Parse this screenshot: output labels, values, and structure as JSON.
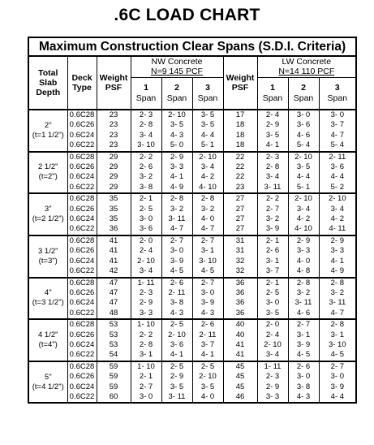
{
  "title": ".6C LOAD CHART",
  "caption": "Maximum Construction Clear Spans (S.D.I. Criteria)",
  "headers": {
    "total_slab_depth": "Total Slab Depth",
    "deck_type": "Deck Type",
    "weight_psf": "Weight PSF",
    "nw_title": "NW Concrete",
    "nw_sub": "N=9  145 PCF",
    "lw_title": "LW Concrete",
    "lw_sub": "N=14  110 PCF",
    "span_word": "Span",
    "span_numbers": [
      "1",
      "2",
      "3"
    ]
  },
  "groups": [
    {
      "depth": "2\"",
      "depth_sub": "(t=1 1/2\")",
      "rows": [
        {
          "deck": "0.6C28",
          "nw_weight": "23",
          "nw": [
            "2- 3",
            "2- 10",
            "3- 5"
          ],
          "lw_weight": "17",
          "lw": [
            "2- 4",
            "3- 0",
            "3- 0"
          ]
        },
        {
          "deck": "0.6C26",
          "nw_weight": "23",
          "nw": [
            "2- 8",
            "3- 5",
            "3- 5"
          ],
          "lw_weight": "18",
          "lw": [
            "2- 9",
            "3- 6",
            "3- 7"
          ]
        },
        {
          "deck": "0.6C24",
          "nw_weight": "23",
          "nw": [
            "3- 4",
            "4- 3",
            "4- 4"
          ],
          "lw_weight": "18",
          "lw": [
            "3- 5",
            "4- 6",
            "4- 7"
          ]
        },
        {
          "deck": "0.6C22",
          "nw_weight": "23",
          "nw": [
            "3- 10",
            "5- 0",
            "5- 1"
          ],
          "lw_weight": "18",
          "lw": [
            "4- 1",
            "5- 4",
            "5- 4"
          ]
        }
      ]
    },
    {
      "depth": "2 1/2\"",
      "depth_sub": "(t=2\")",
      "rows": [
        {
          "deck": "0.6C28",
          "nw_weight": "29",
          "nw": [
            "2- 2",
            "2- 9",
            "2- 10"
          ],
          "lw_weight": "22",
          "lw": [
            "2- 3",
            "2- 10",
            "2- 11"
          ]
        },
        {
          "deck": "0.6C26",
          "nw_weight": "29",
          "nw": [
            "2- 6",
            "3- 3",
            "3- 4"
          ],
          "lw_weight": "22",
          "lw": [
            "2- 8",
            "3- 5",
            "3- 6"
          ]
        },
        {
          "deck": "0.6C24",
          "nw_weight": "29",
          "nw": [
            "3- 2",
            "4- 1",
            "4- 2"
          ],
          "lw_weight": "22",
          "lw": [
            "3- 4",
            "4- 4",
            "4- 4"
          ]
        },
        {
          "deck": "0.6C22",
          "nw_weight": "29",
          "nw": [
            "3- 8",
            "4- 9",
            "4- 10"
          ],
          "lw_weight": "23",
          "lw": [
            "3- 11",
            "5- 1",
            "5- 2"
          ]
        }
      ]
    },
    {
      "depth": "3\"",
      "depth_sub": "(t=2 1/2\")",
      "rows": [
        {
          "deck": "0.6C28",
          "nw_weight": "35",
          "nw": [
            "2- 1",
            "2- 8",
            "2- 8"
          ],
          "lw_weight": "27",
          "lw": [
            "2- 2",
            "2- 10",
            "2- 10"
          ]
        },
        {
          "deck": "0.6C26",
          "nw_weight": "35",
          "nw": [
            "2- 5",
            "3- 2",
            "3- 2"
          ],
          "lw_weight": "27",
          "lw": [
            "2- 7",
            "3- 4",
            "3- 4"
          ]
        },
        {
          "deck": "0.6C24",
          "nw_weight": "35",
          "nw": [
            "3- 0",
            "3- 11",
            "4- 0"
          ],
          "lw_weight": "27",
          "lw": [
            "3- 2",
            "4- 2",
            "4- 2"
          ]
        },
        {
          "deck": "0.6C22",
          "nw_weight": "36",
          "nw": [
            "3- 6",
            "4- 7",
            "4- 7"
          ],
          "lw_weight": "27",
          "lw": [
            "3- 9",
            "4- 10",
            "4- 11"
          ]
        }
      ]
    },
    {
      "depth": "3 1/2\"",
      "depth_sub": "(t=3\")",
      "rows": [
        {
          "deck": "0.6C28",
          "nw_weight": "41",
          "nw": [
            "2- 0",
            "2- 7",
            "2- 7"
          ],
          "lw_weight": "31",
          "lw": [
            "2- 1",
            "2- 9",
            "2- 9"
          ]
        },
        {
          "deck": "0.6C26",
          "nw_weight": "41",
          "nw": [
            "2- 4",
            "3- 0",
            "3- 1"
          ],
          "lw_weight": "31",
          "lw": [
            "2- 6",
            "3- 3",
            "3- 3"
          ]
        },
        {
          "deck": "0.6C24",
          "nw_weight": "41",
          "nw": [
            "2- 10",
            "3- 9",
            "3- 10"
          ],
          "lw_weight": "32",
          "lw": [
            "3- 1",
            "4- 0",
            "4- 1"
          ]
        },
        {
          "deck": "0.6C22",
          "nw_weight": "42",
          "nw": [
            "3- 4",
            "4- 5",
            "4- 5"
          ],
          "lw_weight": "32",
          "lw": [
            "3- 7",
            "4- 8",
            "4- 9"
          ]
        }
      ]
    },
    {
      "depth": "4\"",
      "depth_sub": "(t=3 1/2\")",
      "rows": [
        {
          "deck": "0.6C28",
          "nw_weight": "47",
          "nw": [
            "1- 11",
            "2- 6",
            "2- 7"
          ],
          "lw_weight": "36",
          "lw": [
            "2- 1",
            "2- 8",
            "2- 8"
          ]
        },
        {
          "deck": "0.6C26",
          "nw_weight": "47",
          "nw": [
            "2- 3",
            "2- 11",
            "3- 0"
          ],
          "lw_weight": "36",
          "lw": [
            "2- 5",
            "3- 2",
            "3- 2"
          ]
        },
        {
          "deck": "0.6C24",
          "nw_weight": "47",
          "nw": [
            "2- 9",
            "3- 8",
            "3- 9"
          ],
          "lw_weight": "36",
          "lw": [
            "3- 0",
            "3- 11",
            "3- 11"
          ]
        },
        {
          "deck": "0.6C22",
          "nw_weight": "48",
          "nw": [
            "3- 3",
            "4- 3",
            "4- 3"
          ],
          "lw_weight": "36",
          "lw": [
            "3- 5",
            "4- 6",
            "4- 7"
          ]
        }
      ]
    },
    {
      "depth": "4 1/2\"",
      "depth_sub": "(t=4\")",
      "rows": [
        {
          "deck": "0.6C28",
          "nw_weight": "53",
          "nw": [
            "1- 10",
            "2- 5",
            "2- 6"
          ],
          "lw_weight": "40",
          "lw": [
            "2- 0",
            "2- 7",
            "2- 8"
          ]
        },
        {
          "deck": "0.6C26",
          "nw_weight": "53",
          "nw": [
            "2- 2",
            "2- 10",
            "2- 11"
          ],
          "lw_weight": "40",
          "lw": [
            "2- 4",
            "3- 1",
            "3- 1"
          ]
        },
        {
          "deck": "0.6C24",
          "nw_weight": "53",
          "nw": [
            "2- 8",
            "3- 6",
            "3- 7"
          ],
          "lw_weight": "41",
          "lw": [
            "2- 10",
            "3- 9",
            "3- 10"
          ]
        },
        {
          "deck": "0.6C22",
          "nw_weight": "54",
          "nw": [
            "3- 1",
            "4- 1",
            "4- 1"
          ],
          "lw_weight": "41",
          "lw": [
            "3- 4",
            "4- 5",
            "4- 5"
          ]
        }
      ]
    },
    {
      "depth": "5\"",
      "depth_sub": "(t=4 1/2\")",
      "rows": [
        {
          "deck": "0.6C28",
          "nw_weight": "59",
          "nw": [
            "1- 10",
            "2- 5",
            "2- 5"
          ],
          "lw_weight": "45",
          "lw": [
            "1- 11",
            "2- 6",
            "2- 7"
          ]
        },
        {
          "deck": "0.6C26",
          "nw_weight": "59",
          "nw": [
            "2- 1",
            "2- 9",
            "2- 10"
          ],
          "lw_weight": "45",
          "lw": [
            "2- 3",
            "3- 0",
            "3- 0"
          ]
        },
        {
          "deck": "0.6C24",
          "nw_weight": "59",
          "nw": [
            "2- 7",
            "3- 5",
            "3- 5"
          ],
          "lw_weight": "45",
          "lw": [
            "2- 9",
            "3- 8",
            "3- 9"
          ]
        },
        {
          "deck": "0.6C22",
          "nw_weight": "60",
          "nw": [
            "3- 0",
            "3- 11",
            "4- 0"
          ],
          "lw_weight": "46",
          "lw": [
            "3- 3",
            "4- 3",
            "4- 4"
          ]
        }
      ]
    }
  ]
}
